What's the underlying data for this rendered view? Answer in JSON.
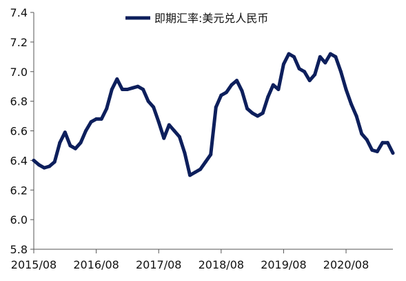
{
  "chart_data": {
    "type": "line",
    "title": "",
    "xlabel": "",
    "ylabel": "",
    "legend": {
      "placement": "top-center"
    },
    "grid": false,
    "x_ticks": [
      "2015/08",
      "2016/08",
      "2017/08",
      "2018/08",
      "2019/08",
      "2020/08"
    ],
    "y_ticks": [
      "5.8",
      "6.0",
      "6.2",
      "6.4",
      "6.6",
      "6.8",
      "7.0",
      "7.2",
      "7.4"
    ],
    "xlim": [
      "2015-08",
      "2021-05"
    ],
    "ylim": [
      5.8,
      7.4
    ],
    "series": [
      {
        "name": "即期汇率:美元兑人民币",
        "color": "#0d1f5c",
        "x": [
          "2015-08",
          "2015-09",
          "2015-10",
          "2015-11",
          "2015-12",
          "2016-01",
          "2016-02",
          "2016-03",
          "2016-04",
          "2016-05",
          "2016-06",
          "2016-07",
          "2016-08",
          "2016-09",
          "2016-10",
          "2016-11",
          "2016-12",
          "2017-01",
          "2017-02",
          "2017-03",
          "2017-04",
          "2017-05",
          "2017-06",
          "2017-07",
          "2017-08",
          "2017-09",
          "2017-10",
          "2017-11",
          "2017-12",
          "2018-01",
          "2018-02",
          "2018-03",
          "2018-04",
          "2018-05",
          "2018-06",
          "2018-07",
          "2018-08",
          "2018-09",
          "2018-10",
          "2018-11",
          "2018-12",
          "2019-01",
          "2019-02",
          "2019-03",
          "2019-04",
          "2019-05",
          "2019-06",
          "2019-07",
          "2019-08",
          "2019-09",
          "2019-10",
          "2019-11",
          "2019-12",
          "2020-01",
          "2020-02",
          "2020-03",
          "2020-04",
          "2020-05",
          "2020-06",
          "2020-07",
          "2020-08",
          "2020-09",
          "2020-10",
          "2020-11",
          "2020-12",
          "2021-01",
          "2021-02",
          "2021-03",
          "2021-04",
          "2021-05"
        ],
        "values": [
          6.4,
          6.37,
          6.35,
          6.36,
          6.39,
          6.52,
          6.59,
          6.5,
          6.48,
          6.52,
          6.6,
          6.66,
          6.68,
          6.68,
          6.75,
          6.88,
          6.95,
          6.88,
          6.88,
          6.89,
          6.9,
          6.88,
          6.8,
          6.76,
          6.66,
          6.55,
          6.64,
          6.6,
          6.56,
          6.45,
          6.3,
          6.32,
          6.34,
          6.39,
          6.44,
          6.76,
          6.84,
          6.86,
          6.91,
          6.94,
          6.87,
          6.75,
          6.72,
          6.7,
          6.72,
          6.83,
          6.91,
          6.88,
          7.05,
          7.12,
          7.1,
          7.02,
          7.0,
          6.94,
          6.98,
          7.1,
          7.06,
          7.12,
          7.1,
          7.0,
          6.88,
          6.78,
          6.7,
          6.58,
          6.54,
          6.47,
          6.46,
          6.52,
          6.52,
          6.45
        ]
      }
    ]
  }
}
